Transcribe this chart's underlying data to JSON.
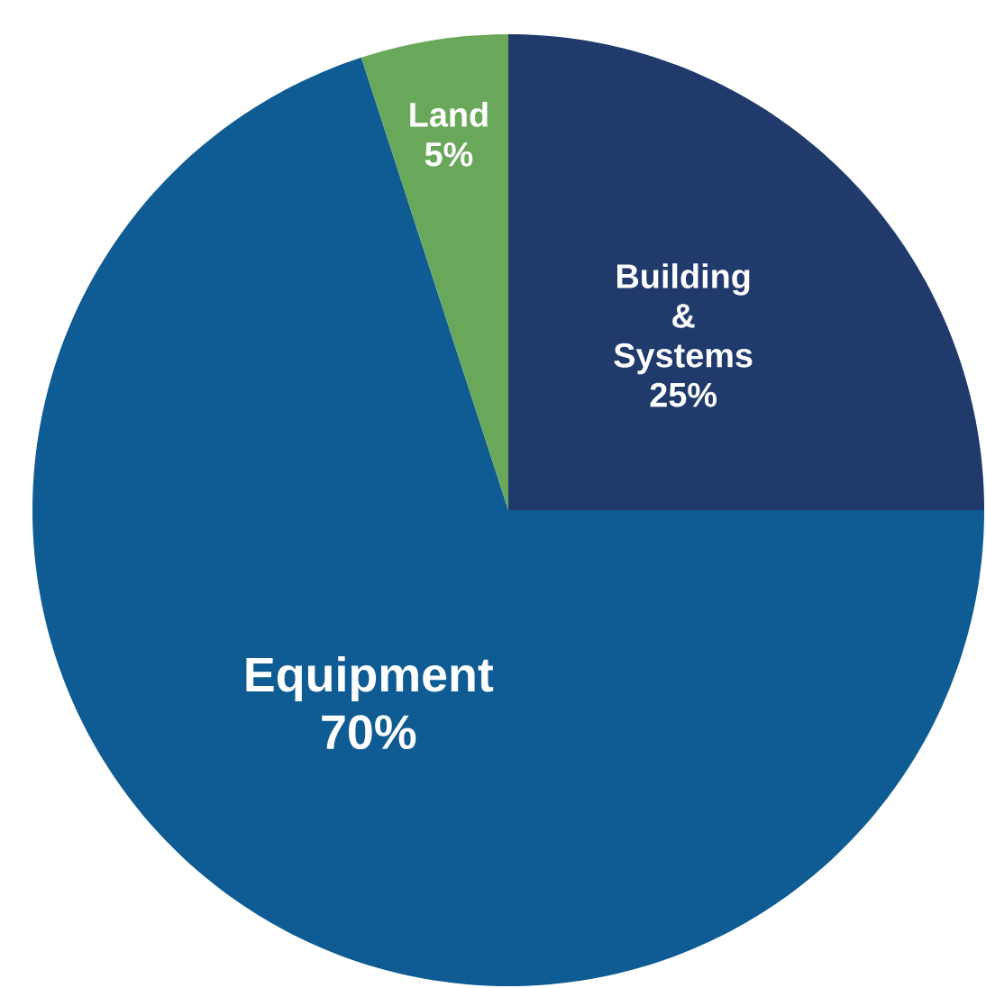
{
  "chart_data": {
    "type": "pie",
    "categories": [
      "Building & Systems",
      "Equipment",
      "Land"
    ],
    "values": [
      25,
      70,
      5
    ],
    "value_labels": [
      "25%",
      "70%",
      "5%"
    ],
    "colors": [
      "#1f3a6b",
      "#0e5c93",
      "#69a85a"
    ]
  }
}
